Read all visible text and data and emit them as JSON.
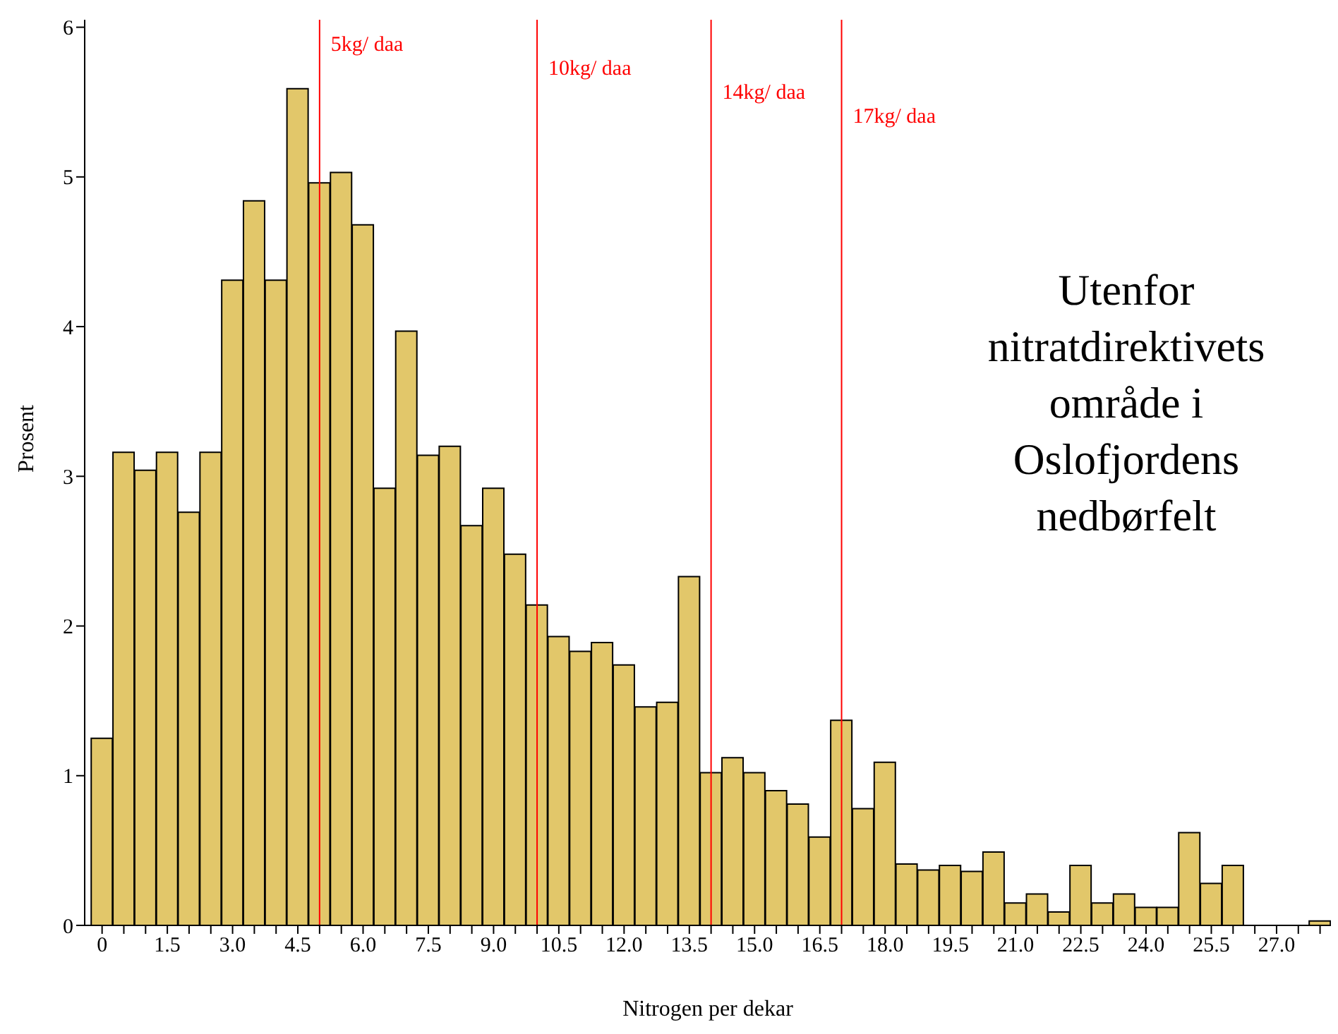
{
  "chart_data": {
    "type": "histogram",
    "xlabel": "Nitrogen per dekar",
    "ylabel": "Prosent",
    "bins": [
      -0.25,
      0.25,
      0.75,
      1.25,
      1.75,
      2.25,
      2.75,
      3.25,
      3.75,
      4.25,
      4.75,
      5.25,
      5.75,
      6.25,
      6.75,
      7.25,
      7.75,
      8.25,
      8.75,
      9.25,
      9.75,
      10.25,
      10.75,
      11.25,
      11.75,
      12.25,
      12.75,
      13.25,
      13.75,
      14.25,
      14.75,
      15.25,
      15.75,
      16.25,
      16.75,
      17.25,
      17.75,
      18.25,
      18.75,
      19.25,
      19.75,
      20.25,
      20.75,
      21.25,
      21.75,
      22.25,
      22.75,
      23.25,
      23.75,
      24.25,
      24.75,
      25.25,
      25.75,
      26.25,
      26.75,
      27.25,
      27.75,
      28.25
    ],
    "values": [
      1.25,
      3.16,
      3.04,
      3.16,
      2.76,
      3.16,
      4.31,
      4.84,
      4.31,
      5.59,
      4.96,
      5.03,
      4.68,
      2.92,
      3.97,
      3.14,
      3.2,
      2.67,
      2.92,
      2.48,
      2.14,
      1.93,
      1.83,
      1.89,
      1.74,
      1.46,
      1.49,
      2.33,
      1.02,
      1.12,
      1.02,
      0.9,
      0.81,
      0.59,
      1.37,
      0.78,
      1.09,
      0.41,
      0.37,
      0.4,
      0.36,
      0.49,
      0.15,
      0.21,
      0.09,
      0.4,
      0.15,
      0.21,
      0.12,
      0.12,
      0.62,
      0.28,
      0.4,
      0,
      0,
      0,
      0.03
    ],
    "color": "#e2c76a",
    "xlim": [
      -0.4,
      28.25
    ],
    "xticks": [
      0,
      {
        "value": 0.5,
        "label": null
      },
      {
        "value": 1,
        "label": null
      },
      1.5,
      {
        "value": 2,
        "label": null
      },
      {
        "value": 2.5,
        "label": null
      },
      {
        "value": 3,
        "label": "3.0"
      },
      {
        "value": 3.5,
        "label": null
      },
      {
        "value": 4,
        "label": null
      },
      4.5,
      {
        "value": 5,
        "label": null
      },
      {
        "value": 5.5,
        "label": null
      },
      {
        "value": 6,
        "label": "6.0"
      },
      {
        "value": 6.5,
        "label": null
      },
      {
        "value": 7,
        "label": null
      },
      7.5,
      {
        "value": 8,
        "label": null
      },
      {
        "value": 8.5,
        "label": null
      },
      {
        "value": 9,
        "label": "9.0"
      },
      {
        "value": 9.5,
        "label": null
      },
      {
        "value": 10,
        "label": null
      },
      10.5,
      {
        "value": 11,
        "label": null
      },
      {
        "value": 11.5,
        "label": null
      },
      {
        "value": 12,
        "label": "12.0"
      },
      {
        "value": 12.5,
        "label": null
      },
      {
        "value": 13,
        "label": null
      },
      13.5,
      {
        "value": 14,
        "label": null
      },
      {
        "value": 14.5,
        "label": null
      },
      {
        "value": 15,
        "label": "15.0"
      },
      {
        "value": 15.5,
        "label": null
      },
      {
        "value": 16,
        "label": null
      },
      16.5,
      {
        "value": 17,
        "label": null
      },
      {
        "value": 17.5,
        "label": null
      },
      {
        "value": 18,
        "label": "18.0"
      },
      {
        "value": 18.5,
        "label": null
      },
      {
        "value": 19,
        "label": null
      },
      19.5,
      {
        "value": 20,
        "label": null
      },
      {
        "value": 20.5,
        "label": null
      },
      {
        "value": 21,
        "label": "21.0"
      },
      {
        "value": 21.5,
        "label": null
      },
      {
        "value": 22,
        "label": null
      },
      22.5,
      {
        "value": 23,
        "label": null
      },
      {
        "value": 23.5,
        "label": null
      },
      {
        "value": 24,
        "label": "24.0"
      },
      {
        "value": 24.5,
        "label": null
      },
      {
        "value": 25,
        "label": null
      },
      25.5,
      {
        "value": 26,
        "label": null
      },
      {
        "value": 26.5,
        "label": null
      },
      {
        "value": 27,
        "label": "27.0"
      },
      {
        "value": 27.5,
        "label": null
      },
      {
        "value": 28,
        "label": null
      }
    ],
    "ylim": [
      0,
      6.05
    ],
    "yticks": [
      0,
      1,
      2,
      3,
      4,
      5,
      6
    ],
    "ref_lines": [
      {
        "axis": "x",
        "value": 5,
        "label": "5kg/ daa",
        "color": "#ff0000"
      },
      {
        "axis": "x",
        "value": 10,
        "label": "10kg/ daa",
        "color": "#ff0000"
      },
      {
        "axis": "x",
        "value": 14,
        "label": "14kg/ daa",
        "color": "#ff0000"
      },
      {
        "axis": "x",
        "value": 17,
        "label": "17kg/ daa",
        "color": "#ff0000"
      }
    ],
    "annotations": [
      "Utenfor nitratdirektivets område i Oslofjordens nedbørfelt"
    ],
    "grid": false,
    "legend": false
  }
}
